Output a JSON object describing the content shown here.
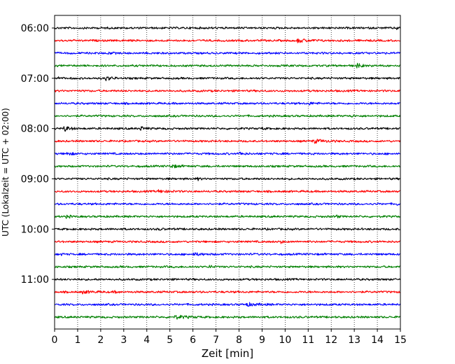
{
  "chart_data": {
    "type": "line",
    "subtype": "helicorder",
    "xlabel": "Zeit  [min]",
    "ylabel": "UTC (Lokalzeit = UTC + 02:00)",
    "xlim": [
      0,
      15
    ],
    "x_ticks": [
      "0",
      "1",
      "2",
      "3",
      "4",
      "5",
      "6",
      "7",
      "8",
      "9",
      "10",
      "11",
      "12",
      "13",
      "14",
      "15"
    ],
    "y_tick_labels": [
      "06:00",
      "07:00",
      "08:00",
      "09:00",
      "10:00",
      "11:00"
    ],
    "trace_colors": [
      "#000000",
      "#ff0000",
      "#0000ff",
      "#008000"
    ],
    "vertical_grid": "dotted",
    "traces": [
      {
        "start": "06:00",
        "color": "#000000",
        "events": [
          {
            "x": 14.8,
            "amp": 0.5,
            "dur": 0.4
          }
        ]
      },
      {
        "start": "06:15",
        "color": "#ff0000",
        "events": [
          {
            "x": 10.5,
            "amp": 0.6,
            "dur": 1.2
          }
        ]
      },
      {
        "start": "06:30",
        "color": "#0000ff",
        "events": [
          {
            "x": 2.3,
            "amp": 0.4,
            "dur": 0.5
          }
        ]
      },
      {
        "start": "06:45",
        "color": "#008000",
        "events": [
          {
            "x": 13.1,
            "amp": 0.9,
            "dur": 0.5
          }
        ]
      },
      {
        "start": "07:00",
        "color": "#000000",
        "events": [
          {
            "x": 0.1,
            "amp": 0.5,
            "dur": 0.3
          },
          {
            "x": 2.2,
            "amp": 0.8,
            "dur": 0.6
          }
        ]
      },
      {
        "start": "07:15",
        "color": "#ff0000",
        "events": []
      },
      {
        "start": "07:30",
        "color": "#0000ff",
        "events": [
          {
            "x": 11.0,
            "amp": 0.4,
            "dur": 0.6
          }
        ]
      },
      {
        "start": "07:45",
        "color": "#008000",
        "events": [
          {
            "x": 12.8,
            "amp": 0.6,
            "dur": 0.3
          }
        ]
      },
      {
        "start": "08:00",
        "color": "#000000",
        "events": [
          {
            "x": 0.4,
            "amp": 1.0,
            "dur": 0.6
          },
          {
            "x": 3.7,
            "amp": 0.7,
            "dur": 0.5
          },
          {
            "x": 9.0,
            "amp": 0.4,
            "dur": 0.3
          }
        ]
      },
      {
        "start": "08:15",
        "color": "#ff0000",
        "events": [
          {
            "x": 11.2,
            "amp": 0.6,
            "dur": 1.2
          }
        ]
      },
      {
        "start": "08:30",
        "color": "#0000ff",
        "events": [
          {
            "x": 0.5,
            "amp": 0.6,
            "dur": 0.6
          },
          {
            "x": 8.0,
            "amp": 0.5,
            "dur": 0.5
          }
        ]
      },
      {
        "start": "08:45",
        "color": "#008000",
        "events": [
          {
            "x": 5.0,
            "amp": 0.5,
            "dur": 1.0
          }
        ]
      },
      {
        "start": "09:00",
        "color": "#000000",
        "events": [
          {
            "x": 6.2,
            "amp": 0.4,
            "dur": 0.3
          }
        ]
      },
      {
        "start": "09:15",
        "color": "#ff0000",
        "events": [
          {
            "x": 4.5,
            "amp": 0.4,
            "dur": 1.0
          }
        ]
      },
      {
        "start": "09:30",
        "color": "#0000ff",
        "events": [
          {
            "x": 14.8,
            "amp": 0.5,
            "dur": 0.3
          }
        ]
      },
      {
        "start": "09:45",
        "color": "#008000",
        "events": [
          {
            "x": 0.5,
            "amp": 0.4,
            "dur": 0.5
          },
          {
            "x": 12.2,
            "amp": 0.6,
            "dur": 0.3
          }
        ]
      },
      {
        "start": "10:00",
        "color": "#000000",
        "events": [
          {
            "x": 4.5,
            "amp": 0.3,
            "dur": 0.4
          }
        ]
      },
      {
        "start": "10:15",
        "color": "#ff0000",
        "events": [
          {
            "x": 9.8,
            "amp": 1.0,
            "dur": 0.15
          }
        ]
      },
      {
        "start": "10:30",
        "color": "#0000ff",
        "events": [
          {
            "x": 0.2,
            "amp": 0.5,
            "dur": 0.3
          },
          {
            "x": 6.0,
            "amp": 0.4,
            "dur": 1.0
          }
        ]
      },
      {
        "start": "10:45",
        "color": "#008000",
        "events": [
          {
            "x": 6.7,
            "amp": 0.7,
            "dur": 0.3
          }
        ]
      },
      {
        "start": "11:00",
        "color": "#000000",
        "events": []
      },
      {
        "start": "11:15",
        "color": "#ff0000",
        "events": [
          {
            "x": 1.2,
            "amp": 0.4,
            "dur": 1.0
          },
          {
            "x": 2.6,
            "amp": 0.4,
            "dur": 0.3
          }
        ]
      },
      {
        "start": "11:30",
        "color": "#0000ff",
        "events": [
          {
            "x": 8.3,
            "amp": 0.5,
            "dur": 1.2
          }
        ]
      },
      {
        "start": "11:45",
        "color": "#008000",
        "events": [
          {
            "x": 5.2,
            "amp": 0.5,
            "dur": 1.5
          }
        ]
      }
    ]
  }
}
